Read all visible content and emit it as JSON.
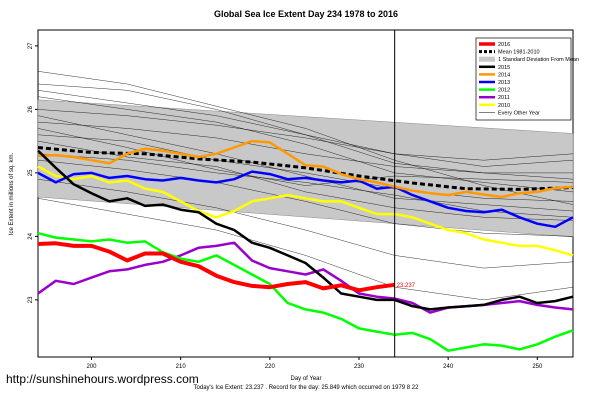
{
  "chart_data": {
    "type": "line",
    "title": "Global Sea Ice Extent Day 234 1978 to 2016",
    "xlabel": "Day of Year",
    "ylabel": "Ice Extent in millions of sq. km.",
    "xlim": [
      194,
      254
    ],
    "ylim": [
      22.1,
      27.25
    ],
    "xticks": [
      200,
      210,
      220,
      230,
      240,
      250
    ],
    "yticks": [
      23,
      24,
      25,
      26,
      27
    ],
    "current_day": 234,
    "footer": "Today's Ice Extent: 23.237 . Record for the day: 25.849 which occurred on 1979 8 22",
    "legend_position": "top-right",
    "annotation": {
      "x": 234,
      "y": 23.237,
      "text": "23.237"
    },
    "band": {
      "name": "1 Standard Deviation From Mean",
      "x": [
        194,
        254
      ],
      "upper": [
        26.15,
        25.62
      ],
      "lower": [
        24.62,
        23.99
      ]
    },
    "series": [
      {
        "name": "2016",
        "color": "#ff0000",
        "style": "solid",
        "width": 4,
        "x": [
          194,
          196,
          198,
          200,
          202,
          204,
          206,
          208,
          210,
          212,
          214,
          216,
          218,
          220,
          222,
          224,
          226,
          228,
          230,
          232,
          234
        ],
        "y": [
          23.88,
          23.89,
          23.85,
          23.85,
          23.76,
          23.62,
          23.73,
          23.73,
          23.6,
          23.53,
          23.38,
          23.28,
          23.22,
          23.2,
          23.25,
          23.28,
          23.18,
          23.23,
          23.15,
          23.2,
          23.237
        ]
      },
      {
        "name": "Mean 1981-2010",
        "color": "#000000",
        "style": "dashed",
        "width": 3,
        "x": [
          194,
          200,
          206,
          212,
          218,
          224,
          230,
          236,
          242,
          248,
          254
        ],
        "y": [
          25.4,
          25.32,
          25.3,
          25.22,
          25.17,
          25.08,
          24.95,
          24.84,
          24.75,
          24.74,
          24.77
        ]
      },
      {
        "name": "1 Standard Deviation From Mean",
        "color": "#c8c8c8",
        "style": "band",
        "width": 6,
        "x": [],
        "y": []
      },
      {
        "name": "2015",
        "color": "#000000",
        "style": "solid",
        "width": 2.5,
        "x": [
          194,
          196,
          198,
          200,
          202,
          204,
          206,
          208,
          210,
          212,
          214,
          216,
          218,
          220,
          222,
          224,
          226,
          228,
          230,
          232,
          234,
          236,
          238,
          240,
          242,
          244,
          246,
          248,
          250,
          252,
          254
        ],
        "y": [
          25.35,
          25.08,
          24.82,
          24.68,
          24.55,
          24.6,
          24.48,
          24.5,
          24.42,
          24.38,
          24.2,
          24.1,
          23.9,
          23.82,
          23.7,
          23.58,
          23.35,
          23.1,
          23.05,
          23.0,
          23.0,
          22.9,
          22.85,
          22.88,
          22.9,
          22.92,
          23.0,
          23.05,
          22.95,
          22.98,
          23.05
        ]
      },
      {
        "name": "2014",
        "color": "#ff9900",
        "style": "solid",
        "width": 2.5,
        "x": [
          194,
          196,
          198,
          200,
          202,
          204,
          206,
          208,
          210,
          212,
          214,
          216,
          218,
          220,
          222,
          224,
          226,
          228,
          230,
          232,
          234,
          236,
          238,
          240,
          242,
          244,
          246,
          248,
          250,
          252,
          254
        ],
        "y": [
          25.27,
          25.28,
          25.25,
          25.2,
          25.15,
          25.3,
          25.38,
          25.35,
          25.3,
          25.25,
          25.3,
          25.4,
          25.5,
          25.48,
          25.3,
          25.12,
          25.1,
          24.98,
          24.9,
          24.85,
          24.78,
          24.72,
          24.68,
          24.65,
          24.7,
          24.66,
          24.62,
          24.68,
          24.7,
          24.76,
          24.78
        ]
      },
      {
        "name": "2013",
        "color": "#0000ff",
        "style": "solid",
        "width": 2.5,
        "x": [
          194,
          196,
          198,
          200,
          202,
          204,
          206,
          208,
          210,
          212,
          214,
          216,
          218,
          220,
          222,
          224,
          226,
          228,
          230,
          232,
          234,
          236,
          238,
          240,
          242,
          244,
          246,
          248,
          250,
          252,
          254
        ],
        "y": [
          25.0,
          24.85,
          24.98,
          25.0,
          24.92,
          24.95,
          24.9,
          24.88,
          24.92,
          24.88,
          24.85,
          24.9,
          25.02,
          24.98,
          24.9,
          24.92,
          24.88,
          24.85,
          24.88,
          24.75,
          24.78,
          24.65,
          24.55,
          24.45,
          24.4,
          24.38,
          24.42,
          24.3,
          24.2,
          24.15,
          24.3
        ]
      },
      {
        "name": "2012",
        "color": "#00ff00",
        "style": "solid",
        "width": 2.5,
        "x": [
          194,
          196,
          198,
          200,
          202,
          204,
          206,
          208,
          210,
          212,
          214,
          216,
          218,
          220,
          222,
          224,
          226,
          228,
          230,
          232,
          234,
          236,
          238,
          240,
          242,
          244,
          246,
          248,
          250,
          252,
          254
        ],
        "y": [
          24.05,
          23.98,
          23.95,
          23.92,
          23.95,
          23.9,
          23.92,
          23.75,
          23.65,
          23.6,
          23.7,
          23.55,
          23.4,
          23.25,
          22.95,
          22.85,
          22.8,
          22.7,
          22.55,
          22.5,
          22.45,
          22.48,
          22.38,
          22.2,
          22.25,
          22.3,
          22.28,
          22.22,
          22.3,
          22.42,
          22.52
        ]
      },
      {
        "name": "2011",
        "color": "#9900cc",
        "style": "solid",
        "width": 2.5,
        "x": [
          194,
          196,
          198,
          200,
          202,
          204,
          206,
          208,
          210,
          212,
          214,
          216,
          218,
          220,
          222,
          224,
          226,
          228,
          230,
          232,
          234,
          236,
          238,
          240,
          242,
          244,
          246,
          248,
          250,
          252,
          254
        ],
        "y": [
          23.1,
          23.3,
          23.25,
          23.35,
          23.45,
          23.48,
          23.55,
          23.6,
          23.7,
          23.82,
          23.85,
          23.9,
          23.62,
          23.5,
          23.45,
          23.4,
          23.48,
          23.3,
          23.1,
          23.05,
          23.02,
          22.95,
          22.8,
          22.88,
          22.9,
          22.92,
          22.95,
          22.98,
          22.92,
          22.88,
          22.85
        ]
      },
      {
        "name": "2010",
        "color": "#ffff00",
        "style": "solid",
        "width": 2.5,
        "x": [
          194,
          196,
          198,
          200,
          202,
          204,
          206,
          208,
          210,
          212,
          214,
          216,
          218,
          220,
          222,
          224,
          226,
          228,
          230,
          232,
          234,
          236,
          238,
          240,
          242,
          244,
          246,
          248,
          250,
          252,
          254
        ],
        "y": [
          25.1,
          24.95,
          24.9,
          24.95,
          24.85,
          24.88,
          24.75,
          24.7,
          24.55,
          24.4,
          24.3,
          24.4,
          24.55,
          24.6,
          24.65,
          24.6,
          24.55,
          24.55,
          24.45,
          24.35,
          24.35,
          24.3,
          24.2,
          24.1,
          24.05,
          23.95,
          23.9,
          23.85,
          23.85,
          23.78,
          23.7
        ]
      },
      {
        "name": "Every Other Year",
        "color": "#000000",
        "style": "thin",
        "width": 0.5,
        "x": [],
        "y": []
      }
    ],
    "other_years": [
      {
        "x": [
          194,
          204,
          214,
          224,
          234,
          244,
          254
        ],
        "y": [
          26.6,
          26.4,
          26.05,
          25.7,
          25.2,
          24.8,
          24.5
        ]
      },
      {
        "x": [
          194,
          204,
          214,
          224,
          234,
          244,
          254
        ],
        "y": [
          26.4,
          26.3,
          26.0,
          25.6,
          25.15,
          25.0,
          24.9
        ]
      },
      {
        "x": [
          194,
          204,
          214,
          224,
          234,
          244,
          254
        ],
        "y": [
          26.2,
          26.0,
          25.8,
          25.45,
          25.0,
          24.85,
          24.7
        ]
      },
      {
        "x": [
          194,
          204,
          214,
          224,
          234,
          244,
          254
        ],
        "y": [
          26.0,
          25.9,
          25.75,
          25.55,
          25.3,
          25.1,
          25.2
        ]
      },
      {
        "x": [
          194,
          204,
          214,
          224,
          234,
          244,
          254
        ],
        "y": [
          25.8,
          25.7,
          25.55,
          25.3,
          25.1,
          25.0,
          25.0
        ]
      },
      {
        "x": [
          194,
          204,
          214,
          224,
          234,
          244,
          254
        ],
        "y": [
          25.6,
          25.5,
          25.2,
          25.0,
          24.75,
          24.6,
          24.55
        ]
      },
      {
        "x": [
          194,
          204,
          214,
          224,
          234,
          244,
          254
        ],
        "y": [
          25.5,
          25.25,
          25.1,
          24.7,
          24.45,
          24.3,
          24.25
        ]
      },
      {
        "x": [
          194,
          204,
          214,
          224,
          234,
          244,
          254
        ],
        "y": [
          25.2,
          25.05,
          24.85,
          24.55,
          24.2,
          24.05,
          24.0
        ]
      },
      {
        "x": [
          194,
          204,
          214,
          224,
          234,
          244,
          254
        ],
        "y": [
          24.9,
          24.7,
          24.45,
          24.1,
          23.7,
          23.5,
          23.6
        ]
      },
      {
        "x": [
          194,
          204,
          214,
          224,
          234,
          244,
          254
        ],
        "y": [
          24.6,
          24.35,
          24.1,
          23.7,
          23.2,
          23.0,
          23.2
        ]
      },
      {
        "x": [
          194,
          204,
          214,
          224,
          234,
          244,
          254
        ],
        "y": [
          26.3,
          26.1,
          25.9,
          25.6,
          25.3,
          25.2,
          25.3
        ]
      },
      {
        "x": [
          194,
          204,
          214,
          224,
          234,
          244,
          254
        ],
        "y": [
          25.9,
          25.6,
          25.3,
          24.95,
          24.6,
          24.5,
          24.4
        ]
      },
      {
        "x": [
          194,
          204,
          214,
          224,
          234,
          244,
          254
        ],
        "y": [
          25.7,
          25.4,
          25.05,
          24.8,
          24.95,
          24.9,
          24.85
        ]
      },
      {
        "x": [
          194,
          204,
          214,
          224,
          234,
          244,
          254
        ],
        "y": [
          25.3,
          25.2,
          25.0,
          24.85,
          24.65,
          24.4,
          24.3
        ]
      }
    ]
  },
  "watermark": "http://sunshinehours.wordpress.com"
}
